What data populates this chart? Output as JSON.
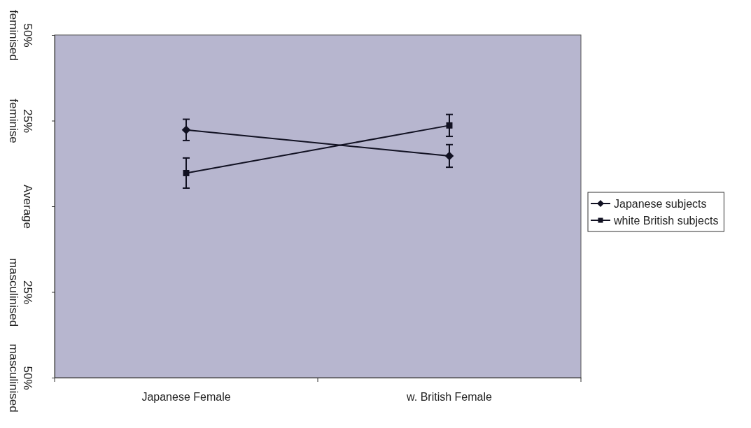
{
  "chart_data": {
    "type": "line",
    "categories": [
      "Japanese Female",
      "w. British Female"
    ],
    "series": [
      {
        "name": "Japanese subjects",
        "color": "#111122",
        "marker": "diamond",
        "values": [
          22.3,
          14.7
        ],
        "errors": [
          3.1,
          3.3
        ]
      },
      {
        "name": "white British subjects",
        "color": "#111122",
        "marker": "square",
        "values": [
          9.7,
          23.6
        ],
        "errors": [
          4.4,
          3.2
        ]
      }
    ],
    "ylim": [
      -50,
      50
    ],
    "yticks": [
      {
        "value": 50,
        "label": "50% feminised"
      },
      {
        "value": 25,
        "label": "25% feminise"
      },
      {
        "value": 0,
        "label": "Average"
      },
      {
        "value": -25,
        "label": "25% masculinised"
      },
      {
        "value": -50,
        "label": "50% masculinised"
      }
    ],
    "legend": "right",
    "grid": false,
    "line_style": "solid"
  }
}
